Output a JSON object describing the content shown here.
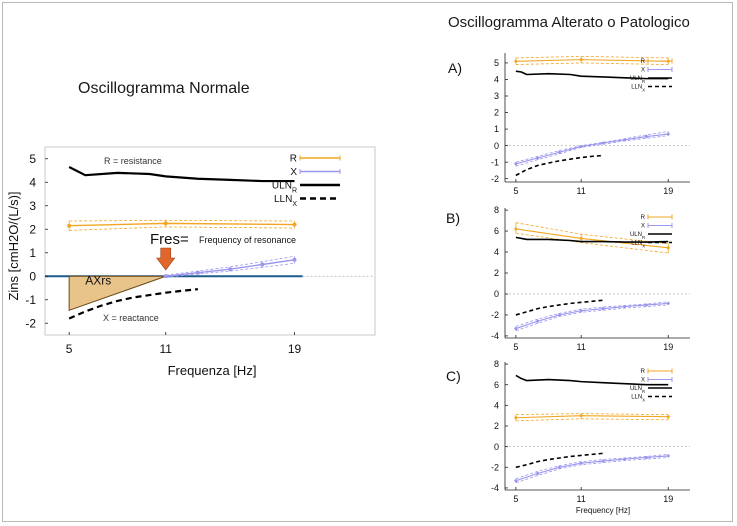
{
  "headings": {
    "normal": "Oscillogramma Normale",
    "altered": "Oscillogramma Alterato o Patologico"
  },
  "colors": {
    "R": "#F2A623",
    "X": "#9B96EE",
    "ULN": "#000000",
    "LLN": "#000000",
    "baseline": "#1F5C8C",
    "axrs_fill": "#E8C48A"
  },
  "annotations": {
    "resistance": "R = resistance",
    "reactance": "X = reactance",
    "fres": "Fres=",
    "fres_desc": "Frequency of resonance",
    "axrs": "AXrs"
  },
  "chart_data": [
    {
      "id": "normal",
      "type": "line",
      "ylabel": "Zins [cmH2O/(L/s)]",
      "xlabel": "Frequenza [Hz]",
      "xlim": [
        3.5,
        24
      ],
      "ylim": [
        -2.5,
        5.5
      ],
      "xticks": [
        "5",
        "11",
        "19"
      ],
      "yticks": [
        "5",
        "4",
        "3",
        "2",
        "1",
        "0",
        "-1",
        "-2"
      ],
      "legend": [
        "R",
        "X",
        "ULNR",
        "LLNX"
      ],
      "series": [
        {
          "name": "R",
          "x": [
            5,
            11,
            19
          ],
          "y": [
            2.15,
            2.25,
            2.2
          ],
          "upper": [
            2.35,
            2.38,
            2.35
          ],
          "lower": [
            1.95,
            2.1,
            2.05
          ]
        },
        {
          "name": "X",
          "x": [
            11,
            13,
            15,
            17,
            19
          ],
          "y": [
            0.0,
            0.15,
            0.3,
            0.5,
            0.7
          ],
          "upper": [
            0.05,
            0.22,
            0.4,
            0.62,
            0.85
          ],
          "lower": [
            -0.05,
            0.1,
            0.22,
            0.38,
            0.55
          ]
        },
        {
          "name": "ULNR",
          "x": [
            5,
            6,
            8,
            10,
            11,
            13,
            15,
            17,
            19
          ],
          "y": [
            4.65,
            4.3,
            4.4,
            4.35,
            4.25,
            4.15,
            4.1,
            4.05,
            4.05
          ]
        },
        {
          "name": "LLNX",
          "x": [
            5,
            6,
            7,
            8,
            9,
            10,
            11,
            12,
            13
          ],
          "y": [
            -1.8,
            -1.5,
            -1.25,
            -1.05,
            -0.9,
            -0.8,
            -0.7,
            -0.62,
            -0.55
          ]
        }
      ]
    },
    {
      "id": "A",
      "type": "line",
      "xlabel": "",
      "xlim": [
        4,
        21
      ],
      "ylim": [
        -2.2,
        5.6
      ],
      "xticks": [
        "5",
        "11",
        "19"
      ],
      "yticks": [
        "5",
        "4",
        "3",
        "2",
        "1",
        "0",
        "-1",
        "-2"
      ],
      "legend": [
        "R",
        "X",
        "ULNR",
        "LLNX"
      ],
      "series": [
        {
          "name": "R",
          "x": [
            5,
            11,
            19
          ],
          "y": [
            5.1,
            5.2,
            5.1
          ],
          "upper": [
            5.3,
            5.4,
            5.3
          ],
          "lower": [
            4.9,
            5.0,
            4.9
          ]
        },
        {
          "name": "X",
          "x": [
            5,
            7,
            9,
            11,
            13,
            15,
            17,
            19
          ],
          "y": [
            -1.1,
            -0.75,
            -0.4,
            -0.05,
            0.15,
            0.35,
            0.55,
            0.7
          ],
          "upper": [
            -1.0,
            -0.65,
            -0.3,
            0.0,
            0.2,
            0.42,
            0.65,
            0.85
          ],
          "lower": [
            -1.25,
            -0.85,
            -0.5,
            -0.1,
            0.08,
            0.28,
            0.45,
            0.6
          ]
        },
        {
          "name": "ULNR",
          "x": [
            5,
            5.5,
            6,
            8,
            10,
            11,
            13,
            15,
            17,
            19
          ],
          "y": [
            4.5,
            4.45,
            4.3,
            4.35,
            4.3,
            4.2,
            4.15,
            4.1,
            4.05,
            4.05
          ]
        },
        {
          "name": "LLNX",
          "x": [
            5,
            6,
            7,
            8,
            9,
            10,
            11,
            12,
            13
          ],
          "y": [
            -1.8,
            -1.45,
            -1.2,
            -1.05,
            -0.92,
            -0.82,
            -0.72,
            -0.65,
            -0.6
          ]
        }
      ]
    },
    {
      "id": "B",
      "type": "line",
      "xlabel": "",
      "xlim": [
        4,
        21
      ],
      "ylim": [
        -4.2,
        8.2
      ],
      "xticks": [
        "5",
        "11",
        "19"
      ],
      "yticks": [
        "8",
        "6",
        "4",
        "2",
        "0",
        "-2",
        "-4"
      ],
      "legend": [
        "R",
        "X",
        "ULNR",
        "LLNX"
      ],
      "series": [
        {
          "name": "R",
          "x": [
            5,
            11,
            19
          ],
          "y": [
            6.2,
            5.3,
            4.4
          ],
          "upper": [
            6.8,
            5.7,
            4.8
          ],
          "lower": [
            5.8,
            4.9,
            3.9
          ]
        },
        {
          "name": "X",
          "x": [
            5,
            7,
            9,
            11,
            13,
            15,
            17,
            19
          ],
          "y": [
            -3.3,
            -2.6,
            -2.0,
            -1.6,
            -1.4,
            -1.2,
            -1.05,
            -0.9
          ],
          "upper": [
            -3.1,
            -2.4,
            -1.85,
            -1.45,
            -1.25,
            -1.1,
            -0.95,
            -0.75
          ],
          "lower": [
            -3.5,
            -2.8,
            -2.15,
            -1.75,
            -1.55,
            -1.35,
            -1.2,
            -1.05
          ]
        },
        {
          "name": "ULNR",
          "x": [
            5,
            6,
            8,
            10,
            11,
            13,
            15,
            17,
            19
          ],
          "y": [
            5.4,
            5.2,
            5.2,
            5.1,
            5.0,
            5.0,
            4.95,
            4.95,
            5.0
          ]
        },
        {
          "name": "LLNX",
          "x": [
            5,
            6,
            7,
            8,
            9,
            10,
            11,
            12,
            13
          ],
          "y": [
            -2.0,
            -1.7,
            -1.4,
            -1.2,
            -1.05,
            -0.9,
            -0.8,
            -0.7,
            -0.6
          ]
        }
      ]
    },
    {
      "id": "C",
      "type": "line",
      "xlabel": "Frequency [Hz]",
      "xlim": [
        4,
        21
      ],
      "ylim": [
        -4.2,
        8.2
      ],
      "xticks": [
        "5",
        "11",
        "19"
      ],
      "yticks": [
        "8",
        "6",
        "4",
        "2",
        "0",
        "-2",
        "-4"
      ],
      "legend": [
        "R",
        "X",
        "ULNR",
        "LLNX"
      ],
      "series": [
        {
          "name": "R",
          "x": [
            5,
            11,
            19
          ],
          "y": [
            2.8,
            3.0,
            2.9
          ],
          "upper": [
            3.1,
            3.2,
            3.1
          ],
          "lower": [
            2.5,
            2.7,
            2.6
          ]
        },
        {
          "name": "X",
          "x": [
            5,
            7,
            9,
            11,
            13,
            15,
            17,
            19
          ],
          "y": [
            -3.3,
            -2.6,
            -2.0,
            -1.6,
            -1.4,
            -1.2,
            -1.05,
            -0.9
          ],
          "upper": [
            -3.1,
            -2.4,
            -1.85,
            -1.45,
            -1.25,
            -1.1,
            -0.95,
            -0.75
          ],
          "lower": [
            -3.5,
            -2.8,
            -2.15,
            -1.75,
            -1.55,
            -1.35,
            -1.2,
            -1.05
          ]
        },
        {
          "name": "ULNR",
          "x": [
            5,
            5.5,
            6,
            8,
            10,
            11,
            13,
            15,
            17,
            19
          ],
          "y": [
            6.9,
            6.6,
            6.4,
            6.5,
            6.4,
            6.3,
            6.2,
            6.1,
            6.0,
            6.0
          ]
        },
        {
          "name": "LLNX",
          "x": [
            5,
            6,
            7,
            8,
            9,
            10,
            11,
            12,
            13
          ],
          "y": [
            -2.0,
            -1.75,
            -1.45,
            -1.25,
            -1.1,
            -0.95,
            -0.85,
            -0.75,
            -0.65
          ]
        }
      ]
    }
  ]
}
